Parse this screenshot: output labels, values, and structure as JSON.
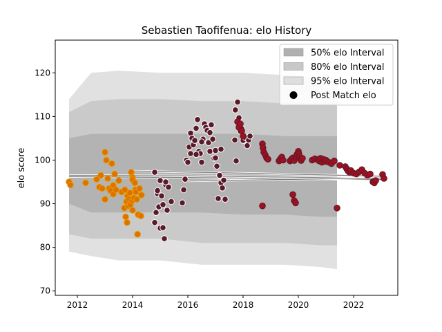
{
  "chart_data": {
    "type": "scatter",
    "title": "Sebastien Taofifenua: elo History",
    "xlabel": "",
    "ylabel": "elo score",
    "xlim": [
      2011.2,
      2023.6
    ],
    "ylim": [
      69.0,
      127.5
    ],
    "x_ticks": [
      2012,
      2014,
      2016,
      2018,
      2020,
      2022
    ],
    "y_ticks": [
      70,
      80,
      90,
      100,
      110,
      120
    ],
    "legend": {
      "placement": "top-right",
      "entries": [
        {
          "label": "50% elo Interval",
          "kind": "patch",
          "color": "#b0b0b0"
        },
        {
          "label": "80% elo Interval",
          "kind": "patch",
          "color": "#c8c8c8"
        },
        {
          "label": "95% elo Interval",
          "kind": "patch",
          "color": "#dedede"
        },
        {
          "label": "Post Match elo",
          "kind": "marker",
          "color": "#000000"
        }
      ]
    },
    "colors": {
      "band50": "#b0b0b0",
      "band80": "#c8c8c8",
      "band95": "#dedede",
      "mean_line": "#808080",
      "early_points": "#e07000",
      "early_edge": "#e0a000",
      "mid_points": "#5a1a2a",
      "mid_edge": "#ffffff",
      "late_points": "#a01020",
      "late_edge": "#5a1a2a"
    },
    "bands": [
      {
        "name": "95%",
        "x": [
          2011.7,
          2012.5,
          2013.5,
          2015.0,
          2016.5,
          2018.0,
          2019.5,
          2020.8,
          2021.4
        ],
        "lower": [
          79,
          78,
          77,
          77,
          76,
          76,
          76,
          75.5,
          75
        ],
        "upper": [
          114,
          120,
          120.5,
          120,
          120,
          120,
          119.5,
          119,
          119
        ]
      },
      {
        "name": "80%",
        "x": [
          2011.7,
          2012.5,
          2013.5,
          2015.0,
          2016.5,
          2018.0,
          2019.5,
          2020.8,
          2021.4
        ],
        "lower": [
          83,
          82,
          82,
          82,
          81,
          81,
          81,
          80.5,
          80.5
        ],
        "upper": [
          111,
          113.5,
          114,
          114,
          113.5,
          113.5,
          113,
          113,
          113
        ]
      },
      {
        "name": "50%",
        "x": [
          2011.7,
          2012.5,
          2013.5,
          2015.0,
          2016.5,
          2018.0,
          2019.5,
          2020.8,
          2021.4
        ],
        "lower": [
          90,
          88,
          88,
          88,
          88,
          87.5,
          87.5,
          87,
          87
        ],
        "upper": [
          105,
          106,
          106,
          106,
          106,
          106,
          105.5,
          105.5,
          105.5
        ]
      }
    ],
    "mean_lines": [
      {
        "x": [
          2011.7,
          2016.0,
          2023.1
        ],
        "y": [
          96.5,
          96.4,
          95.8
        ]
      },
      {
        "x": [
          2011.7,
          2016.0,
          2023.1
        ],
        "y": [
          96.2,
          96.0,
          95.5
        ]
      },
      {
        "x": [
          2014.0,
          2018.0,
          2023.1
        ],
        "y": [
          97.5,
          97.0,
          96.3
        ]
      },
      {
        "x": [
          2016.0,
          2020.0,
          2023.1
        ],
        "y": [
          95.2,
          95.6,
          95.9
        ]
      }
    ],
    "series": [
      {
        "group": "early",
        "x": [
          2011.7,
          2011.75,
          2012.3,
          2012.7,
          2012.8,
          2012.85,
          2012.9,
          2013.0,
          2013.0,
          2013.05,
          2013.1,
          2013.15,
          2013.2,
          2013.25,
          2013.3,
          2013.3,
          2013.35,
          2013.4,
          2013.5,
          2013.6,
          2013.7,
          2013.72,
          2013.75,
          2013.78,
          2013.8,
          2013.82,
          2013.85,
          2013.88,
          2013.9,
          2013.92,
          2013.95,
          2013.98,
          2014.0,
          2014.0,
          2014.05,
          2014.1,
          2014.12,
          2014.15,
          2014.2,
          2014.25,
          2014.3,
          2014.32,
          2014.0,
          2014.08,
          2014.18
        ],
        "y": [
          95,
          94.3,
          94.8,
          95.6,
          93.8,
          96.5,
          93.5,
          91,
          101.8,
          100,
          95.8,
          93.5,
          93,
          99.2,
          92.2,
          94.2,
          96.8,
          93.2,
          95.3,
          92.7,
          89,
          93.2,
          87,
          90.5,
          85.7,
          91.8,
          89.5,
          91,
          92.5,
          89.8,
          97.2,
          90.7,
          96,
          88.5,
          91.3,
          93.2,
          92.7,
          91,
          87.5,
          93.5,
          87.2,
          92,
          95.5,
          94.8,
          83
        ]
      },
      {
        "group": "mid",
        "x": [
          2014.8,
          2014.85,
          2014.9,
          2014.95,
          2015.0,
          2015.05,
          2015.1,
          2015.15,
          2015.2,
          2015.3,
          2015.4,
          2014.8,
          2014.9,
          2015.0,
          2015.1,
          2015.2,
          2015.25,
          2015.8,
          2015.85,
          2015.9,
          2015.95,
          2016.0,
          2016.05,
          2016.1,
          2016.15,
          2016.2,
          2016.25,
          2016.3,
          2016.35,
          2016.4,
          2016.45,
          2016.5,
          2016.55,
          2016.6,
          2016.65,
          2016.7,
          2016.75,
          2016.8,
          2016.85,
          2016.9,
          2016.95,
          2017.0,
          2017.05,
          2017.1,
          2017.15,
          2017.2,
          2017.25,
          2017.3,
          2017.35,
          2017.7,
          2017.72,
          2017.75,
          2017.8,
          2017.85,
          2017.9,
          2017.95,
          2018.0,
          2018.05,
          2018.1,
          2018.15,
          2018.2,
          2018.25,
          2016.1,
          2016.3,
          2016.5,
          2016.8,
          2017.0,
          2017.2
        ],
        "y": [
          85.7,
          88,
          92.3,
          89.3,
          84.4,
          91.8,
          89.8,
          82,
          94.3,
          93.8,
          90.5,
          97.2,
          93,
          95.3,
          84.5,
          95,
          88.5,
          90.2,
          93.2,
          95.6,
          100,
          99.5,
          103,
          106.2,
          105,
          103.5,
          104.5,
          107.3,
          109.3,
          102,
          101.5,
          99.5,
          104.8,
          108.3,
          107.5,
          106.8,
          104,
          102,
          108.1,
          104.8,
          100.4,
          102.2,
          98.6,
          91.2,
          96.5,
          94.8,
          93.6,
          95.4,
          91,
          104.6,
          111.5,
          99.8,
          113.3,
          109.7,
          106.6,
          107.2,
          104.5,
          105.3,
          105.1,
          103.3,
          104.6,
          105.5,
          101.5,
          101.3,
          104.2,
          106.3,
          100.5,
          102.5
        ]
      },
      {
        "group": "late",
        "x": [
          2017.8,
          2017.85,
          2017.9,
          2017.95,
          2018.0,
          2018.7,
          2018.72,
          2018.75,
          2018.8,
          2018.85,
          2018.9,
          2019.3,
          2019.35,
          2019.4,
          2019.45,
          2019.7,
          2019.75,
          2019.8,
          2019.85,
          2019.9,
          2019.95,
          2020.0,
          2020.02,
          2020.05,
          2020.08,
          2020.1,
          2020.15,
          2019.8,
          2019.85,
          2019.9,
          2018.7,
          2020.5,
          2020.6,
          2020.7,
          2020.75,
          2020.8,
          2020.85,
          2020.9,
          2020.95,
          2021.0,
          2021.1,
          2021.2,
          2021.3,
          2021.4,
          2021.5,
          2021.7,
          2021.75,
          2021.8,
          2021.85,
          2021.9,
          2022.0,
          2022.1,
          2022.2,
          2022.3,
          2022.4,
          2022.5,
          2022.6,
          2022.7,
          2022.75,
          2022.8,
          2023.05,
          2023.1
        ],
        "y": [
          108.8,
          107.5,
          108.3,
          106.7,
          105.5,
          103.7,
          102.8,
          101.8,
          101.2,
          100.5,
          100.2,
          99.8,
          100.3,
          100.7,
          100,
          99.8,
          100.2,
          100.5,
          99.9,
          100.7,
          101.3,
          102,
          101.5,
          100.8,
          100.2,
          99.9,
          100.4,
          92.1,
          90.7,
          90.2,
          89.5,
          100,
          100.3,
          100.1,
          99.8,
          100.4,
          99.5,
          100.2,
          99.7,
          100,
          99.5,
          99.2,
          99.8,
          89,
          98.8,
          98.5,
          98,
          97.5,
          97.2,
          97.6,
          97,
          96.8,
          97.3,
          97.8,
          97,
          96.5,
          96.8,
          95,
          94.8,
          95.3,
          96.7,
          95.8
        ]
      }
    ]
  }
}
